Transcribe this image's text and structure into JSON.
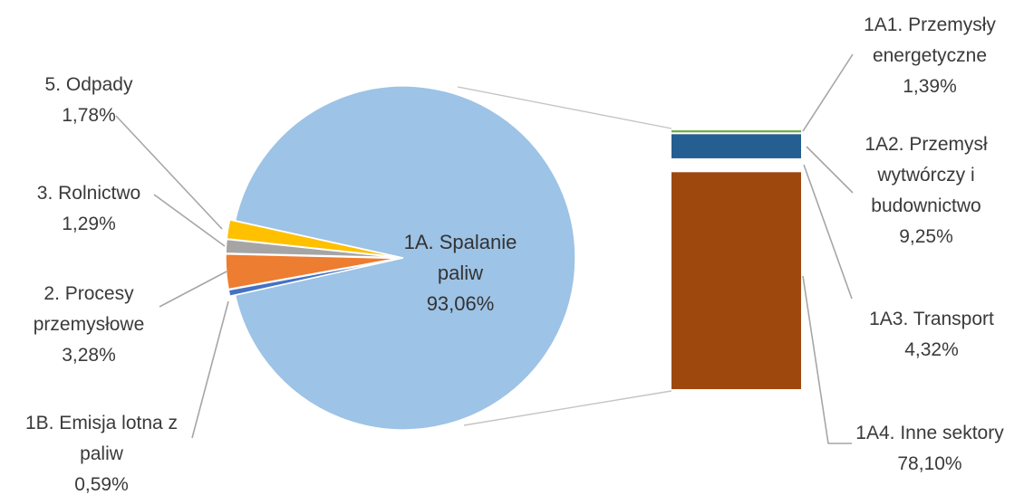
{
  "chart_data": {
    "type": "pie",
    "title": "",
    "main_pie": {
      "slices": [
        {
          "key": "1A",
          "name": "1A. Spalanie paliw",
          "value": 93.06,
          "label_lines": [
            "1A. Spalanie",
            "paliw",
            "93,06%"
          ],
          "color": "#9dc3e6"
        },
        {
          "key": "1B",
          "name": "1B. Emisja lotna z paliw",
          "value": 0.59,
          "label_lines": [
            "1B. Emisja lotna z",
            "paliw",
            "0,59%"
          ],
          "color": "#4472c4"
        },
        {
          "key": "2",
          "name": "2. Procesy przemysłowe",
          "value": 3.28,
          "label_lines": [
            "2. Procesy",
            "przemysłowe",
            "3,28%"
          ],
          "color": "#ed7d31"
        },
        {
          "key": "3",
          "name": "3. Rolnictwo",
          "value": 1.29,
          "label_lines": [
            "3. Rolnictwo",
            "1,29%"
          ],
          "color": "#a5a5a5"
        },
        {
          "key": "5",
          "name": "5. Odpady",
          "value": 1.78,
          "label_lines": [
            "5. Odpady",
            "1,78%"
          ],
          "color": "#ffc000"
        }
      ]
    },
    "breakdown_bar": {
      "parent": "1A",
      "segments": [
        {
          "key": "1A1",
          "name": "1A1. Przemysły energetyczne",
          "value": 1.39,
          "label_lines": [
            "1A1. Przemysły",
            "energetyczne",
            "1,39%"
          ],
          "color": "#70ad47"
        },
        {
          "key": "1A2",
          "name": "1A2. Przemysł wytwórczy i budownictwo",
          "value": 9.25,
          "label_lines": [
            "1A2. Przemysł",
            "wytwórczy i",
            "budownictwo",
            "9,25%"
          ],
          "color": "#255e91"
        },
        {
          "key": "1A3",
          "name": "1A3. Transport",
          "value": 4.32,
          "label_lines": [
            "1A3. Transport",
            "4,32%"
          ],
          "color": "#ffffff"
        },
        {
          "key": "1A4",
          "name": "1A4. Inne sektory",
          "value": 78.1,
          "label_lines": [
            "1A4. Inne sektory",
            "78,10%"
          ],
          "color": "#9e480e"
        }
      ]
    },
    "legend": "none"
  }
}
